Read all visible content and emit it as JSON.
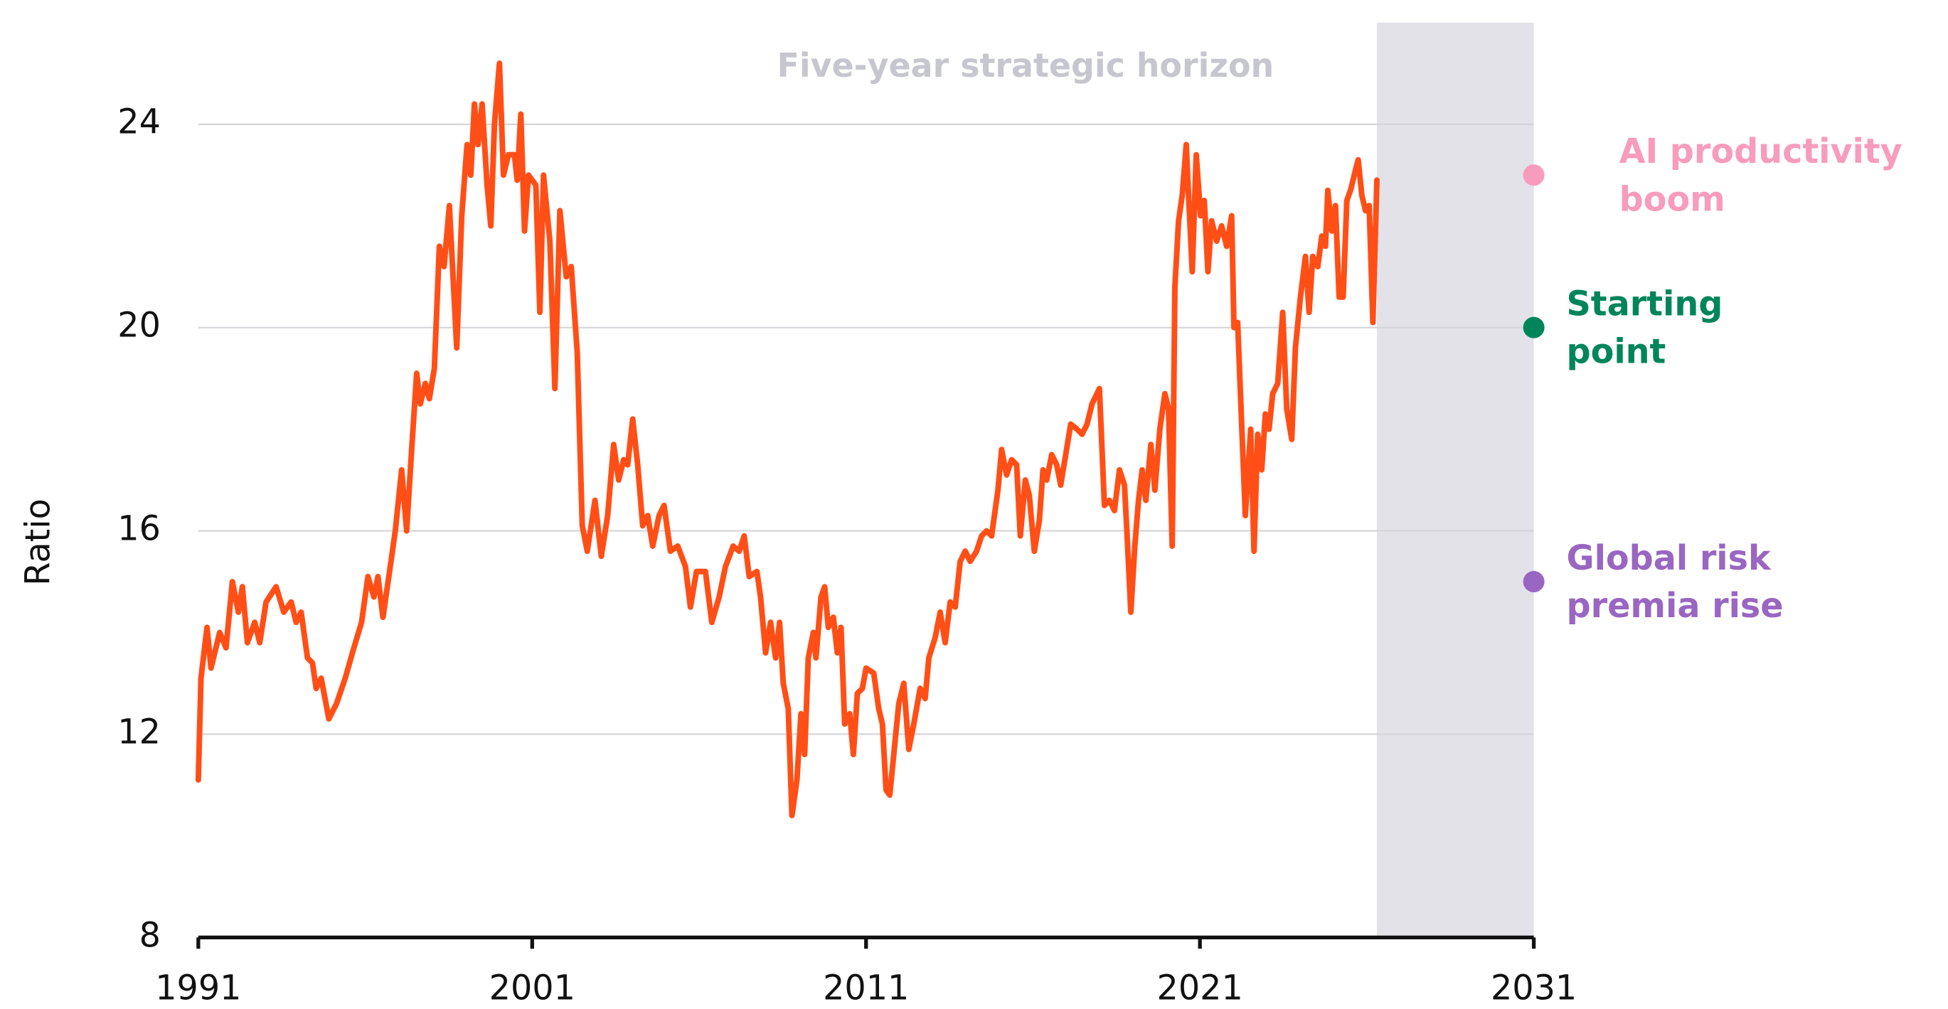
{
  "chart_data": {
    "type": "line",
    "y_label": "Ratio",
    "xlim": [
      1991,
      2031
    ],
    "ylim": [
      8,
      26
    ],
    "xticks": [
      1991,
      2001,
      2011,
      2021,
      2031
    ],
    "yticks": [
      8,
      12,
      16,
      20,
      24
    ],
    "grid": true,
    "color": "#ff4f17",
    "shaded_region": {
      "label": "Five-year strategic horizon",
      "xlim": [
        2026.3,
        2031
      ],
      "color": "#e2e2e8"
    },
    "scenarios": [
      {
        "label": [
          "AI productivity",
          "boom"
        ],
        "x": 2031,
        "value": 23,
        "color": "#f79cbc"
      },
      {
        "label": [
          "Starting",
          "point"
        ],
        "x": 2031,
        "value": 20,
        "color": "#00855a"
      },
      {
        "label": [
          "Global risk",
          "premia rise"
        ],
        "x": 2031,
        "value": 15,
        "color": "#9966c2"
      }
    ],
    "x": [
      1991.0,
      1991.08,
      1991.26,
      1991.38,
      1991.64,
      1991.83,
      1992.02,
      1992.2,
      1992.32,
      1992.47,
      1992.69,
      1992.84,
      1993.03,
      1993.33,
      1993.56,
      1993.78,
      1993.93,
      1994.08,
      1994.27,
      1994.42,
      1994.53,
      1994.68,
      1994.91,
      1995.14,
      1995.4,
      1995.66,
      1995.89,
      1996.08,
      1996.26,
      1996.38,
      1996.53,
      1996.75,
      1996.9,
      1997.09,
      1997.24,
      1997.39,
      1997.54,
      1997.65,
      1997.8,
      1997.92,
      1998.07,
      1998.22,
      1998.36,
      1998.52,
      1998.74,
      1998.89,
      1999.05,
      1999.16,
      1999.27,
      1999.38,
      1999.5,
      1999.65,
      1999.76,
      1999.87,
      2000.02,
      2000.14,
      2000.29,
      2000.47,
      2000.55,
      2000.66,
      2000.77,
      2000.89,
      2001.11,
      2001.23,
      2001.34,
      2001.53,
      2001.68,
      2001.83,
      2002.02,
      2002.17,
      2002.35,
      2002.5,
      2002.65,
      2002.88,
      2003.07,
      2003.26,
      2003.44,
      2003.59,
      2003.74,
      2003.86,
      2004.01,
      2004.16,
      2004.31,
      2004.46,
      2004.61,
      2004.8,
      2004.95,
      2005.14,
      2005.36,
      2005.59,
      2005.74,
      2005.92,
      2006.19,
      2006.38,
      2006.6,
      2006.79,
      2007.02,
      2007.2,
      2007.35,
      2007.5,
      2007.73,
      2007.84,
      2007.99,
      2008.14,
      2008.29,
      2008.41,
      2008.52,
      2008.67,
      2008.78,
      2008.93,
      2009.05,
      2009.16,
      2009.27,
      2009.42,
      2009.5,
      2009.65,
      2009.76,
      2009.87,
      2010.02,
      2010.14,
      2010.25,
      2010.36,
      2010.51,
      2010.62,
      2010.74,
      2010.89,
      2011.0,
      2011.23,
      2011.38,
      2011.49,
      2011.6,
      2011.71,
      2011.83,
      2011.98,
      2012.13,
      2012.28,
      2012.43,
      2012.62,
      2012.77,
      2012.88,
      2013.07,
      2013.22,
      2013.37,
      2013.52,
      2013.67,
      2013.82,
      2013.97,
      2014.12,
      2014.31,
      2014.46,
      2014.61,
      2014.76,
      2014.95,
      2015.06,
      2015.21,
      2015.36,
      2015.51,
      2015.62,
      2015.77,
      2015.89,
      2016.04,
      2016.19,
      2016.3,
      2016.41,
      2016.56,
      2016.71,
      2016.83,
      2016.98,
      2017.13,
      2017.32,
      2017.47,
      2017.62,
      2017.77,
      2017.99,
      2018.14,
      2018.29,
      2018.44,
      2018.59,
      2018.74,
      2018.82,
      2018.93,
      2019.05,
      2019.16,
      2019.27,
      2019.38,
      2019.53,
      2019.65,
      2019.8,
      2019.95,
      2020.06,
      2020.17,
      2020.25,
      2020.36,
      2020.47,
      2020.59,
      2020.66,
      2020.77,
      2020.89,
      2021.02,
      2021.13,
      2021.24,
      2021.35,
      2021.5,
      2021.65,
      2021.8,
      2021.95,
      2022.02,
      2022.13,
      2022.25,
      2022.36,
      2022.52,
      2022.62,
      2022.73,
      2022.85,
      2022.96,
      2023.07,
      2023.18,
      2023.33,
      2023.48,
      2023.6,
      2023.75,
      2023.86,
      2024.01,
      2024.16,
      2024.27,
      2024.38,
      2024.53,
      2024.65,
      2024.76,
      2024.83,
      2024.95,
      2025.06,
      2025.17,
      2025.29,
      2025.4,
      2025.51,
      2025.66,
      2025.74,
      2025.85,
      2025.96,
      2026.07,
      2026.18,
      2026.3
    ],
    "values": [
      11.1,
      13.1,
      14.1,
      13.3,
      14.0,
      13.7,
      15.0,
      14.4,
      14.9,
      13.8,
      14.2,
      13.8,
      14.6,
      14.9,
      14.4,
      14.6,
      14.2,
      14.4,
      13.5,
      13.4,
      12.9,
      13.1,
      12.3,
      12.6,
      13.1,
      13.7,
      14.2,
      15.1,
      14.7,
      15.1,
      14.3,
      15.3,
      16.0,
      17.2,
      16.0,
      17.6,
      19.1,
      18.5,
      18.9,
      18.6,
      19.2,
      21.6,
      21.2,
      22.4,
      19.6,
      22.2,
      23.6,
      23.0,
      24.4,
      23.6,
      24.4,
      22.8,
      22.0,
      24.0,
      25.2,
      23.0,
      23.4,
      23.4,
      22.9,
      24.2,
      21.9,
      23.0,
      22.8,
      20.3,
      23.0,
      21.7,
      18.8,
      22.3,
      21.0,
      21.2,
      19.5,
      16.1,
      15.6,
      16.6,
      15.5,
      16.3,
      17.7,
      17.0,
      17.4,
      17.3,
      18.2,
      17.3,
      16.1,
      16.3,
      15.7,
      16.3,
      16.5,
      15.6,
      15.7,
      15.3,
      14.5,
      15.2,
      15.2,
      14.2,
      14.7,
      15.3,
      15.7,
      15.6,
      15.9,
      15.1,
      15.2,
      14.7,
      13.6,
      14.2,
      13.5,
      14.2,
      13.0,
      12.5,
      10.4,
      11.1,
      12.4,
      11.6,
      13.5,
      14.0,
      13.5,
      14.7,
      14.9,
      14.1,
      14.3,
      13.6,
      14.1,
      12.2,
      12.4,
      11.6,
      12.8,
      12.9,
      13.3,
      13.2,
      12.5,
      12.2,
      10.9,
      10.8,
      11.6,
      12.6,
      13.0,
      11.7,
      12.2,
      12.9,
      12.7,
      13.5,
      13.9,
      14.4,
      13.8,
      14.6,
      14.5,
      15.4,
      15.6,
      15.4,
      15.6,
      15.9,
      16.0,
      15.9,
      16.8,
      17.6,
      17.1,
      17.4,
      17.3,
      15.9,
      17.0,
      16.7,
      15.6,
      16.2,
      17.2,
      17.0,
      17.5,
      17.3,
      16.9,
      17.5,
      18.1,
      18.0,
      17.9,
      18.1,
      18.5,
      18.8,
      16.5,
      16.6,
      16.4,
      17.2,
      16.9,
      15.9,
      14.4,
      15.7,
      16.6,
      17.2,
      16.6,
      17.7,
      16.8,
      18.0,
      18.7,
      18.4,
      15.7,
      20.8,
      22.1,
      22.6,
      23.6,
      22.6,
      21.1,
      23.4,
      22.2,
      22.5,
      21.1,
      22.1,
      21.7,
      22.0,
      21.6,
      22.2,
      20.0,
      20.1,
      18.1,
      16.3,
      18.0,
      15.6,
      17.9,
      17.2,
      18.3,
      18.0,
      18.7,
      18.9,
      20.3,
      18.4,
      17.8,
      19.6,
      20.6,
      21.4,
      20.3,
      21.4,
      21.2,
      21.8,
      21.6,
      22.7,
      21.9,
      22.4,
      20.6,
      20.6,
      22.5,
      22.7,
      23.1,
      23.3,
      22.6,
      22.3,
      22.4,
      20.1,
      22.9
    ]
  }
}
